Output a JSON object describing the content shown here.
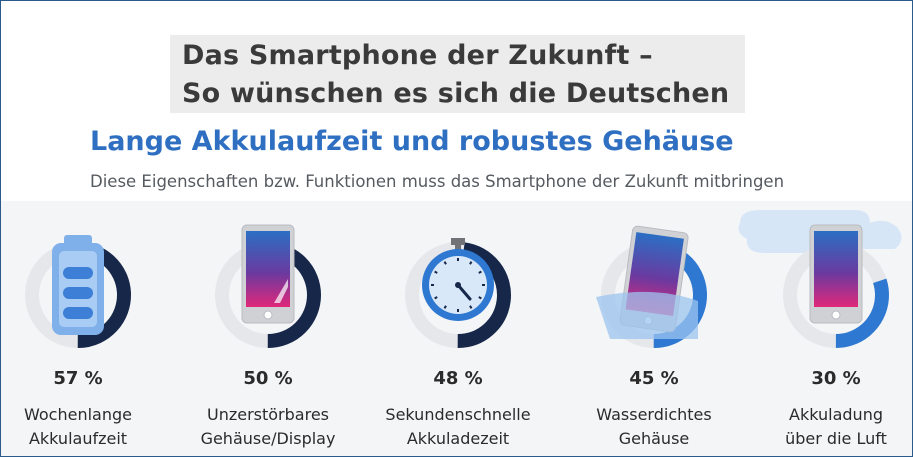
{
  "header": {
    "title_line1": "Das Smartphone der Zukunft –",
    "title_line2": "So wünschen es sich die Deutschen",
    "subtitle": "Lange Akkulaufzeit und robustes Gehäuse",
    "description": "Diese Eigenschaften bzw. Funktionen muss das Smartphone der Zukunft mitbringen"
  },
  "colors": {
    "ring_dark": "#16274a",
    "ring_blue": "#2e78d2",
    "ring_track": "#e6e7ea",
    "accent": "#2f6fc2"
  },
  "chart_data": {
    "type": "pie",
    "unit": "%",
    "categories": [
      "Wochenlange Akkulaufzeit",
      "Unzerstörbares Gehäuse/Display",
      "Sekundenschnelle Akkuladezeit",
      "Wasserdichtes Gehäuse",
      "Akkuladung über die Luft"
    ],
    "values": [
      57,
      50,
      48,
      45,
      30
    ],
    "value_labels": [
      "57 %",
      "50 %",
      "48 %",
      "45 %",
      "30 %"
    ],
    "label_lines": [
      [
        "Wochenlange",
        "Akkulaufzeit"
      ],
      [
        "Unzerstörbares",
        "Gehäuse/Display"
      ],
      [
        "Sekundenschnelle",
        "Akkuladezeit"
      ],
      [
        "Wasserdichtes",
        "Gehäuse"
      ],
      [
        "Akkuladung",
        "über die Luft"
      ]
    ],
    "icons": [
      "battery-icon",
      "shatterproof-phone-icon",
      "stopwatch-icon",
      "waterproof-phone-icon",
      "wireless-charging-phone-icon"
    ]
  }
}
